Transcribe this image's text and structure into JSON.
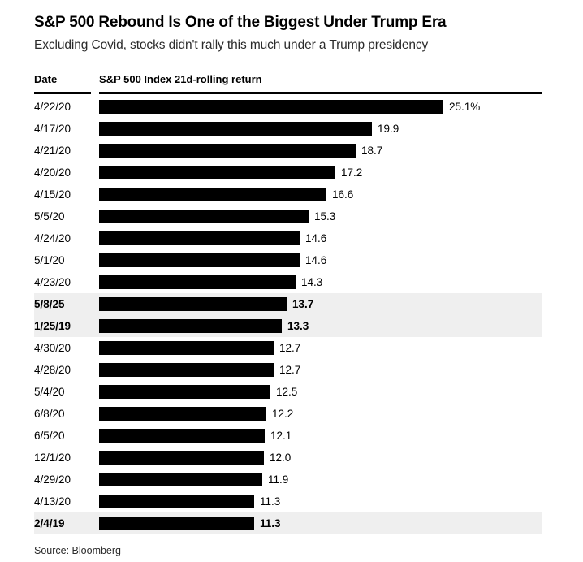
{
  "page": {
    "title": "S&P 500 Rebound Is One of the Biggest Under Trump Era",
    "subtitle": "Excluding Covid, stocks didn't rally this much under a Trump presidency",
    "source": "Source: Bloomberg"
  },
  "table_header": {
    "date": "Date",
    "value": "S&P 500 Index 21d-rolling return"
  },
  "chart_data": {
    "type": "bar",
    "orientation": "horizontal",
    "title": "S&P 500 Rebound Is One of the Biggest Under Trump Era",
    "subtitle": "Excluding Covid, stocks didn't rally this much under a Trump presidency",
    "xlabel": "S&P 500 Index 21d-rolling return",
    "ylabel": "Date",
    "xlim": [
      0,
      25.1
    ],
    "grid": false,
    "legend": false,
    "bar_color": "#000000",
    "highlight_color": "#efefef",
    "categories": [
      "4/22/20",
      "4/17/20",
      "4/21/20",
      "4/20/20",
      "4/15/20",
      "5/5/20",
      "4/24/20",
      "5/1/20",
      "4/23/20",
      "5/8/25",
      "1/25/19",
      "4/30/20",
      "4/28/20",
      "5/4/20",
      "6/8/20",
      "6/5/20",
      "12/1/20",
      "4/29/20",
      "4/13/20",
      "2/4/19"
    ],
    "values": [
      25.1,
      19.9,
      18.7,
      17.2,
      16.6,
      15.3,
      14.6,
      14.6,
      14.3,
      13.7,
      13.3,
      12.7,
      12.7,
      12.5,
      12.2,
      12.1,
      12.0,
      11.9,
      11.3,
      11.3
    ],
    "value_labels": [
      "25.1%",
      "19.9",
      "18.7",
      "17.2",
      "16.6",
      "15.3",
      "14.6",
      "14.6",
      "14.3",
      "13.7",
      "13.3",
      "12.7",
      "12.7",
      "12.5",
      "12.2",
      "12.1",
      "12.0",
      "11.9",
      "11.3",
      "11.3"
    ],
    "highlighted_indices": [
      9,
      10,
      19
    ],
    "highlighted_dates": [
      "5/8/25",
      "1/25/19",
      "2/4/19"
    ],
    "source": "Source: Bloomberg"
  }
}
